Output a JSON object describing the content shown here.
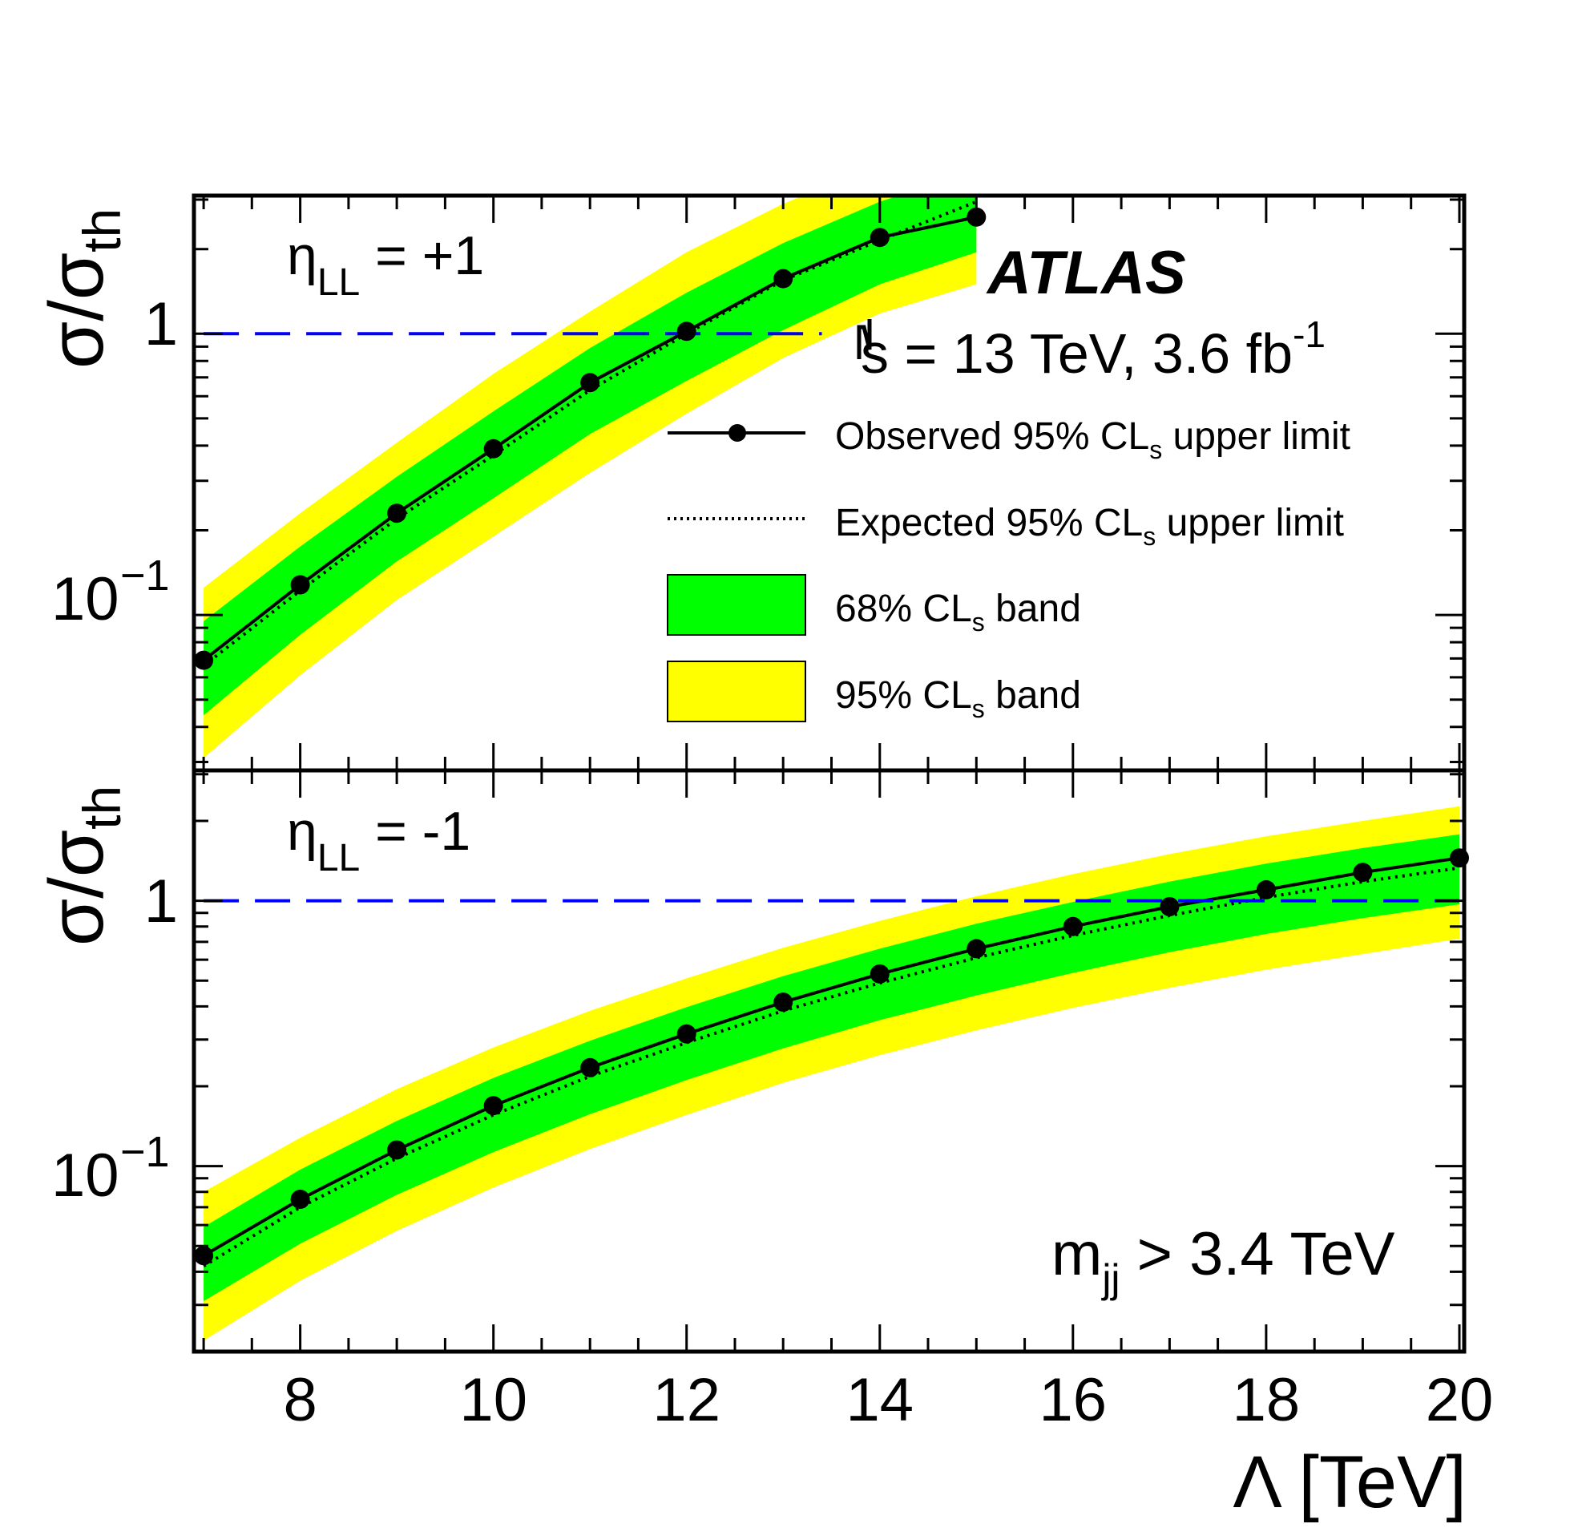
{
  "chart_data": {
    "type": "line",
    "shared_x_axis": {
      "label": "Λ [TeV]",
      "range": [
        6.9,
        20.05
      ],
      "ticks": [
        "8",
        "10",
        "12",
        "14",
        "16",
        "18",
        "20"
      ]
    },
    "y_axis_label_main": "σ/σ",
    "y_axis_label_sub": "th",
    "y_scale": "log",
    "y_ticks": [
      "1",
      "10",
      "−1"
    ],
    "experiment": "ATLAS",
    "energy_text": "s = 13 TeV, 3.6 fb",
    "energy_sup": "-1",
    "cut_text_m": "m",
    "cut_text_sub": "jj",
    "cut_text_rest": " > 3.4 TeV",
    "legend": {
      "placement": "right",
      "observed": [
        "Observed 95% CL",
        "s",
        " upper limit"
      ],
      "expected": [
        "Expected 95% CL",
        "s",
        " upper limit"
      ],
      "band68": [
        "68% CL",
        "s",
        " band"
      ],
      "band95": [
        "95% CL",
        "s",
        " band"
      ]
    },
    "colors": {
      "observed": "#000000",
      "expected": "#000000",
      "band68": "#00ff00",
      "band95": "#ffff00",
      "reference": "#0000ff"
    },
    "panels": [
      {
        "name": "upper",
        "label_main": "η",
        "label_sub": "LL",
        "label_rest": " = +1",
        "ylim": [
          0.028,
          3.1
        ],
        "reference_line": {
          "y": 1,
          "x_range": [
            7,
            13.4
          ]
        },
        "x": [
          7,
          8,
          9,
          10,
          11,
          12,
          13,
          14,
          15
        ],
        "observed": [
          0.069,
          0.128,
          0.23,
          0.39,
          0.67,
          1.02,
          1.57,
          2.2,
          2.6
        ],
        "expected": [
          0.066,
          0.122,
          0.22,
          0.37,
          0.63,
          1.0,
          1.55,
          2.15,
          2.95
        ],
        "band68_low": [
          0.044,
          0.085,
          0.155,
          0.26,
          0.44,
          0.68,
          1.03,
          1.5,
          1.95
        ],
        "band68_high": [
          0.095,
          0.175,
          0.31,
          0.53,
          0.89,
          1.4,
          2.1,
          2.95,
          3.8
        ],
        "band95_low": [
          0.031,
          0.061,
          0.113,
          0.19,
          0.32,
          0.52,
          0.82,
          1.18,
          1.5
        ],
        "band95_high": [
          0.125,
          0.23,
          0.41,
          0.72,
          1.2,
          1.95,
          2.9,
          4.0,
          5.0
        ]
      },
      {
        "name": "lower",
        "label_main": "η",
        "label_sub": "LL",
        "label_rest": " = -1",
        "ylim": [
          0.02,
          3.1
        ],
        "reference_line": {
          "y": 1,
          "x_range": [
            7,
            20
          ]
        },
        "x": [
          7,
          8,
          9,
          10,
          11,
          12,
          13,
          14,
          15,
          16,
          17,
          18,
          19,
          20
        ],
        "observed": [
          0.046,
          0.075,
          0.115,
          0.169,
          0.235,
          0.315,
          0.415,
          0.53,
          0.66,
          0.8,
          0.95,
          1.1,
          1.28,
          1.45
        ],
        "expected": [
          0.042,
          0.07,
          0.107,
          0.156,
          0.218,
          0.292,
          0.385,
          0.49,
          0.61,
          0.74,
          0.88,
          1.03,
          1.18,
          1.33
        ],
        "band68_low": [
          0.031,
          0.051,
          0.078,
          0.113,
          0.157,
          0.211,
          0.278,
          0.355,
          0.44,
          0.535,
          0.64,
          0.75,
          0.86,
          0.97
        ],
        "band68_high": [
          0.059,
          0.097,
          0.148,
          0.215,
          0.297,
          0.397,
          0.52,
          0.66,
          0.82,
          0.99,
          1.18,
          1.38,
          1.58,
          1.78
        ],
        "band95_low": [
          0.022,
          0.037,
          0.057,
          0.083,
          0.116,
          0.156,
          0.206,
          0.262,
          0.325,
          0.395,
          0.47,
          0.55,
          0.63,
          0.72
        ],
        "band95_high": [
          0.08,
          0.128,
          0.195,
          0.28,
          0.385,
          0.51,
          0.665,
          0.84,
          1.04,
          1.26,
          1.5,
          1.75,
          2.0,
          2.27
        ]
      }
    ]
  }
}
